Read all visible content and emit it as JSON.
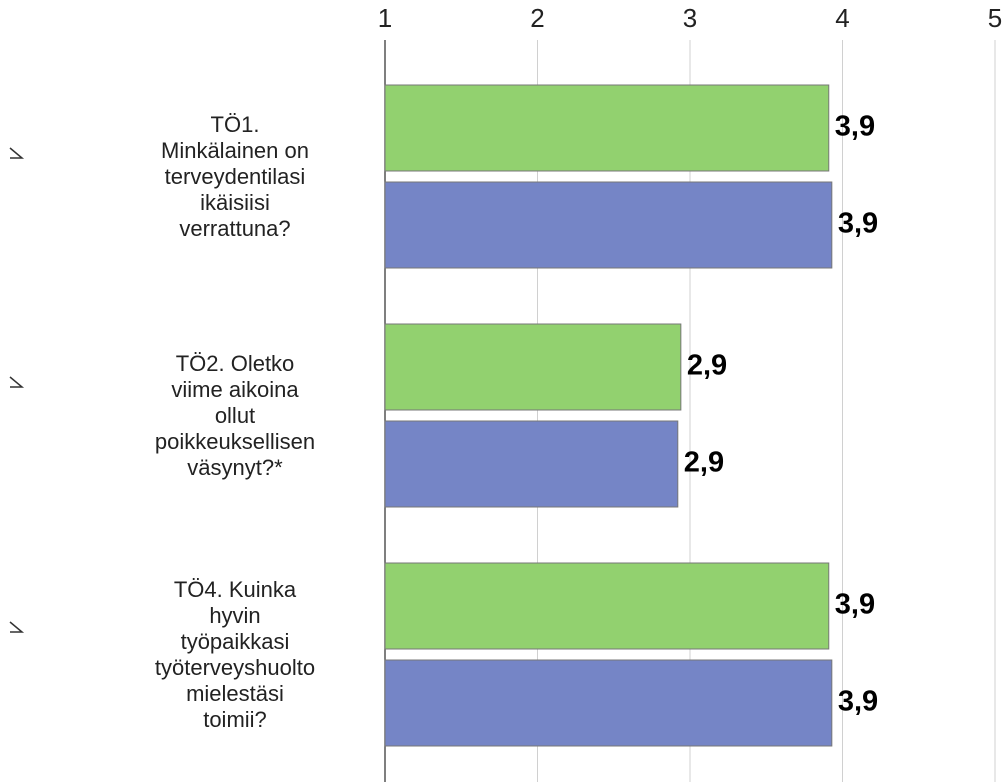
{
  "chart_data": {
    "type": "hbar",
    "categories": [
      "TÖ1.\nMinkälainen on\nterveydentilasi\nikäisiisi\nverrattuna?",
      "TÖ2. Oletko\nviime aikoina\nollut\npoikkeuksellisen\nväsynyt?*",
      "TÖ4. Kuinka\nhyvin\ntyöpaikkasi\ntyöterveyshuolto\nmielestäsi\ntoimii?"
    ],
    "series": [
      {
        "color": "#92d16f",
        "values": [
          3.91,
          2.94,
          3.91
        ],
        "value_labels": [
          "3,9",
          "2,9",
          "3,9"
        ]
      },
      {
        "color": "#7585c6",
        "values": [
          3.93,
          2.92,
          3.93
        ],
        "value_labels": [
          "3,9",
          "2,9",
          "3,9"
        ]
      }
    ],
    "xlim": [
      1,
      5
    ],
    "xticks": [
      1,
      2,
      3,
      4,
      5
    ],
    "grid": true
  }
}
